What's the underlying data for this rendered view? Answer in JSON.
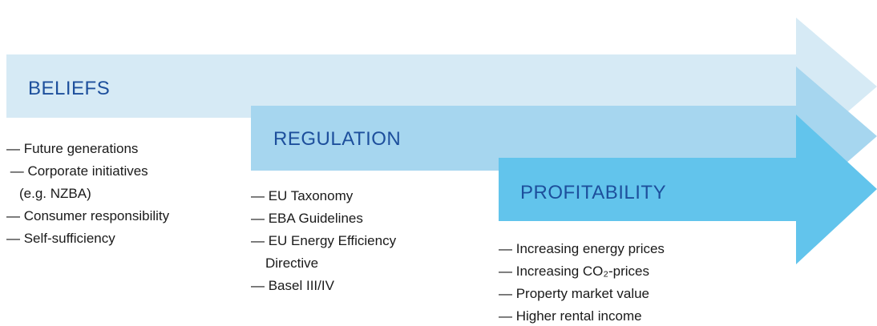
{
  "columns": [
    {
      "label": "BELIEFS",
      "items": [
        "— Future generations",
        " — Corporate initiatives",
        "(e.g. NZBA)",
        "— Consumer responsibility",
        "— Self-sufficiency"
      ]
    },
    {
      "label": "REGULATION",
      "items": [
        "— EU Taxonomy",
        "— EBA Guidelines",
        "— EU Energy Efficiency",
        "Directive",
        "— Basel III/IV"
      ]
    },
    {
      "label": "PROFITABILITY",
      "items": [
        "— Increasing energy prices",
        "— Increasing CO₂-prices",
        "— Property market value",
        "— Higher rental income"
      ]
    }
  ]
}
